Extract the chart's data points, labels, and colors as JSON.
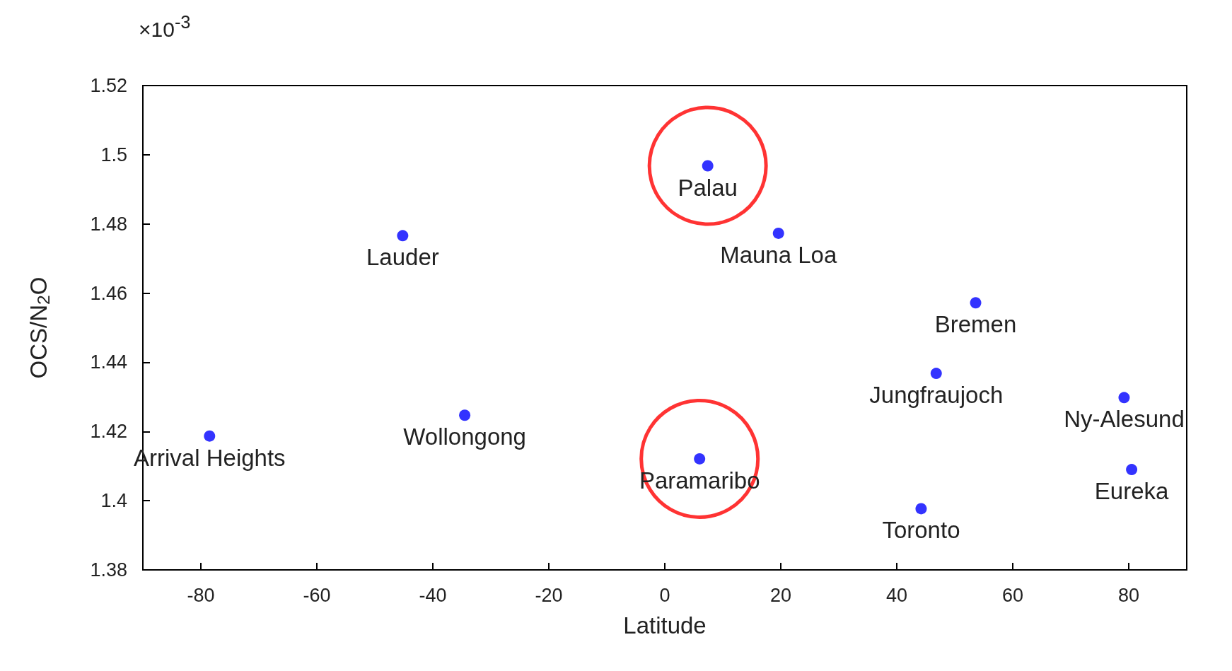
{
  "chart_data": {
    "type": "scatter",
    "xlabel": "Latitude",
    "ylabel": "OCS/N$_{2}$O",
    "xlim": [
      -90,
      90
    ],
    "xticks": [
      -80,
      -60,
      -40,
      -20,
      0,
      20,
      40,
      60,
      80
    ],
    "ylim": [
      1.38,
      1.52
    ],
    "yticks": [
      1.38,
      1.4,
      1.42,
      1.44,
      1.46,
      1.48,
      1.5,
      1.52
    ],
    "grid": false,
    "marker": "circle",
    "series": [
      {
        "color": "#0000ff",
        "x": [
          -78.5,
          -45.2,
          -34.5,
          6.0,
          7.4,
          19.6,
          44.2,
          46.8,
          53.6,
          79.2,
          80.5
        ],
        "values": [
          1.4187,
          1.4766,
          1.4247,
          1.4121,
          1.4968,
          1.4773,
          1.3977,
          1.4368,
          1.4572,
          1.4298,
          1.409
        ]
      },
      {
        "color": "#ff0000",
        "x": [
          6.0,
          7.4
        ],
        "values": [
          1.4121,
          1.4968
        ]
      }
    ],
    "annotations": [
      "×10$^{-3}$",
      {
        "text": "Arrival Heights",
        "x": -78.5,
        "y": 1.4187
      },
      {
        "text": "Lauder",
        "x": -45.2,
        "y": 1.4766
      },
      {
        "text": "Wollongong",
        "x": -34.5,
        "y": 1.4247
      },
      {
        "text": "Paramaribo",
        "x": 6.0,
        "y": 1.4121
      },
      {
        "text": "Palau",
        "x": 7.4,
        "y": 1.4968
      },
      {
        "text": "Mauna Loa",
        "x": 19.6,
        "y": 1.4773
      },
      {
        "text": "Toronto",
        "x": 44.2,
        "y": 1.3977
      },
      {
        "text": "Jungfraujoch",
        "x": 46.8,
        "y": 1.4368
      },
      {
        "text": "Bremen",
        "x": 53.6,
        "y": 1.4572
      },
      {
        "text": "Ny-Alesund",
        "x": 79.2,
        "y": 1.4298
      },
      {
        "text": "Eureka",
        "x": 80.5,
        "y": 1.409
      }
    ]
  }
}
